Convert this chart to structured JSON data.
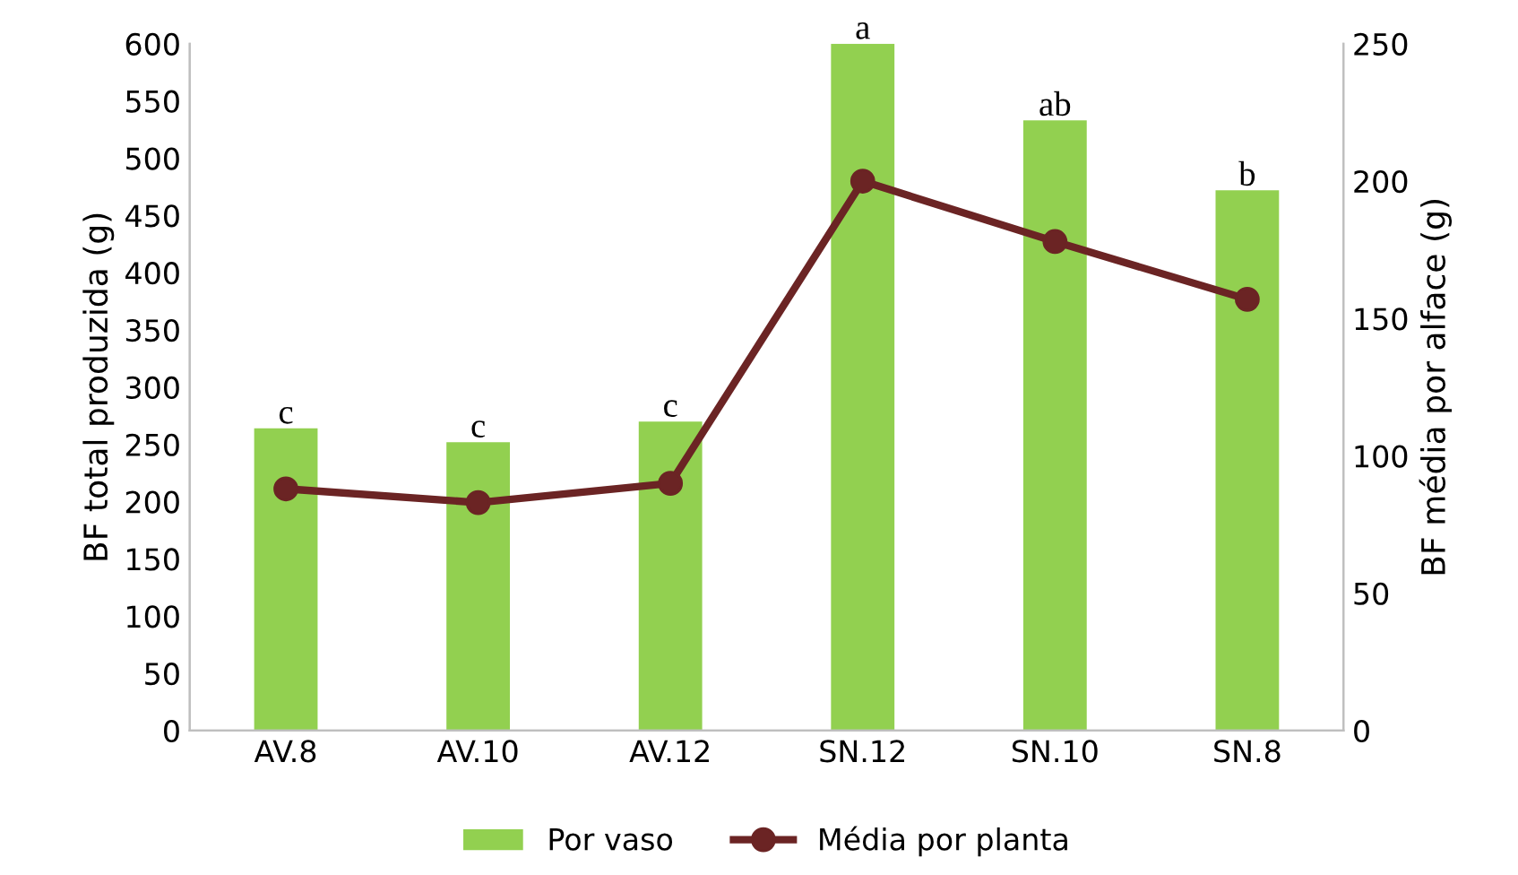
{
  "chart_data": {
    "type": "bar",
    "categories": [
      "AV.8",
      "AV.10",
      "AV.12",
      "SN.12",
      "SN.10",
      "SN.8"
    ],
    "ylabel": "BF total produzida (g)",
    "y2label": "BF média por alface (g)",
    "ylim": [
      0,
      600
    ],
    "yticks": [
      0,
      50,
      100,
      150,
      200,
      250,
      300,
      350,
      400,
      450,
      500,
      550,
      600
    ],
    "y2lim": [
      0,
      250
    ],
    "y2ticks": [
      0,
      50,
      100,
      150,
      200,
      250
    ],
    "legend": "bottom",
    "grid": false,
    "marker": "circle",
    "line_style": "solid",
    "series": [
      {
        "name": "Por vaso",
        "color": "#92d050",
        "values": [
          264,
          252,
          270,
          600,
          533,
          472
        ],
        "value_labels": [
          "c",
          "c",
          "c",
          "a",
          "ab",
          "b"
        ]
      },
      {
        "name": "Média por planta",
        "type": "line",
        "axis": "y2",
        "color": "#6b2424",
        "values": [
          88,
          83,
          90,
          200,
          178,
          157
        ]
      }
    ]
  }
}
